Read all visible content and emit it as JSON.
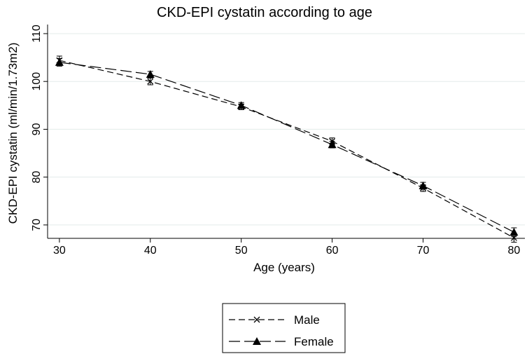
{
  "chart_data": {
    "type": "line",
    "title": "CKD-EPI cystatin according to age",
    "x_label": "Age (years)",
    "y_label": "CKD-EPI cystatin (ml/min/1.73m2)",
    "x": [
      30,
      40,
      50,
      60,
      70,
      80
    ],
    "series": [
      {
        "name": "Male",
        "color": "#000000",
        "marker": "x",
        "dash": "9,5",
        "values": [
          104.4,
          100,
          94.7,
          87.5,
          77.7,
          67.3
        ],
        "errors": [
          0.9,
          0.7,
          0.6,
          0.7,
          0.7,
          0.9
        ]
      },
      {
        "name": "Female",
        "color": "#000000",
        "marker": "triangle",
        "dash": "16,6",
        "values": [
          104,
          101.5,
          95,
          86.8,
          78.2,
          68.5
        ],
        "errors": [
          0.8,
          0.6,
          0.6,
          0.7,
          0.7,
          0.9
        ]
      }
    ],
    "xlim": [
      28.7,
      81.2
    ],
    "ylim": [
      67.2,
      111.9
    ],
    "xticks": [
      30,
      40,
      50,
      60,
      70,
      80
    ],
    "yticks": [
      70,
      80,
      90,
      100,
      110
    ],
    "grid": true
  }
}
